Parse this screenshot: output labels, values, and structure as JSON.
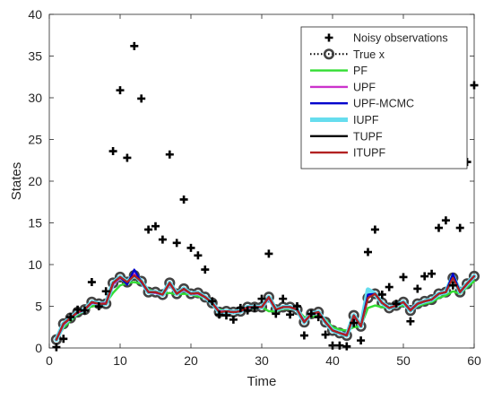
{
  "chart_data": {
    "type": "line",
    "title": "",
    "xlabel": "Time",
    "ylabel": "States",
    "xlim": [
      0,
      60
    ],
    "ylim": [
      0,
      40
    ],
    "xticks": [
      0,
      10,
      20,
      30,
      40,
      50,
      60
    ],
    "yticks": [
      0,
      5,
      10,
      15,
      20,
      25,
      30,
      35,
      40
    ],
    "grid": false,
    "legend_position": "top-right",
    "x": [
      1,
      2,
      3,
      4,
      5,
      6,
      7,
      8,
      9,
      10,
      11,
      12,
      13,
      14,
      15,
      16,
      17,
      18,
      19,
      20,
      21,
      22,
      23,
      24,
      25,
      26,
      27,
      28,
      29,
      30,
      31,
      32,
      33,
      34,
      35,
      36,
      37,
      38,
      39,
      40,
      41,
      42,
      43,
      44,
      45,
      46,
      47,
      48,
      49,
      50,
      51,
      52,
      53,
      54,
      55,
      56,
      57,
      58,
      59,
      60
    ],
    "series": [
      {
        "name": "Noisy observations",
        "style": "markers-plus",
        "color": "#000000",
        "values": [
          0.1,
          1.1,
          3.7,
          4.6,
          4.5,
          7.9,
          5.0,
          6.8,
          23.6,
          30.9,
          22.8,
          36.2,
          29.9,
          14.2,
          14.6,
          13.0,
          23.2,
          12.6,
          17.8,
          12.0,
          11.1,
          9.4,
          5.6,
          4.0,
          3.9,
          3.4,
          4.8,
          4.5,
          4.8,
          5.9,
          11.3,
          4.1,
          5.9,
          4.0,
          5.0,
          1.5,
          4.1,
          3.7,
          1.6,
          0.3,
          0.3,
          0.2,
          3.0,
          0.9,
          11.5,
          14.2,
          6.4,
          7.3,
          5.3,
          8.5,
          3.2,
          7.1,
          8.6,
          8.9,
          14.4,
          15.3,
          7.5,
          14.4,
          22.3,
          31.5
        ]
      },
      {
        "name": "True x",
        "style": "dotted-circles",
        "color": "#000000",
        "values": [
          1.0,
          2.9,
          3.6,
          4.3,
          4.6,
          5.5,
          5.3,
          5.3,
          7.8,
          8.5,
          7.9,
          8.7,
          8.0,
          6.7,
          6.7,
          6.4,
          7.8,
          6.5,
          7.1,
          6.5,
          6.6,
          6.1,
          5.4,
          4.3,
          4.4,
          4.3,
          4.4,
          4.9,
          4.9,
          4.9,
          6.1,
          4.6,
          4.9,
          4.9,
          4.6,
          3.1,
          4.1,
          4.3,
          3.1,
          2.1,
          1.8,
          1.5,
          3.9,
          2.6,
          6.0,
          6.5,
          5.4,
          4.8,
          5.1,
          5.5,
          4.5,
          5.3,
          5.6,
          5.8,
          6.5,
          6.7,
          8.4,
          6.7,
          7.7,
          8.6
        ]
      },
      {
        "name": "PF",
        "style": "line",
        "color": "#33dd33",
        "values": [
          1.1,
          2.4,
          3.3,
          4.0,
          4.5,
          5.0,
          5.1,
          5.4,
          6.6,
          7.5,
          7.8,
          7.9,
          7.7,
          7.0,
          6.7,
          6.5,
          6.6,
          6.4,
          6.5,
          6.4,
          6.2,
          6.0,
          5.3,
          4.6,
          4.4,
          4.3,
          4.4,
          4.6,
          4.8,
          4.9,
          4.4,
          4.4,
          4.7,
          4.7,
          4.6,
          3.7,
          3.7,
          4.0,
          3.4,
          2.5,
          2.2,
          2.1,
          2.5,
          2.6,
          4.8,
          5.1,
          4.9,
          4.8,
          5.0,
          5.1,
          4.8,
          5.0,
          5.3,
          5.5,
          6.0,
          6.3,
          6.8,
          6.5,
          7.3,
          8.0
        ]
      },
      {
        "name": "UPF",
        "style": "line",
        "color": "#cc33cc",
        "values": [
          1.0,
          2.8,
          3.6,
          4.2,
          4.6,
          5.4,
          5.3,
          5.4,
          7.6,
          8.4,
          7.8,
          8.9,
          7.9,
          6.7,
          6.6,
          6.4,
          7.7,
          6.5,
          7.0,
          6.5,
          6.5,
          6.1,
          5.4,
          4.4,
          4.4,
          4.3,
          4.4,
          4.8,
          4.9,
          4.9,
          6.0,
          4.6,
          4.9,
          4.9,
          4.6,
          3.2,
          4.0,
          4.2,
          3.1,
          2.1,
          1.8,
          1.6,
          3.8,
          2.6,
          6.2,
          6.5,
          5.4,
          4.8,
          5.1,
          5.5,
          4.6,
          5.3,
          5.6,
          5.8,
          6.5,
          6.7,
          8.6,
          6.7,
          7.7,
          8.6
        ]
      },
      {
        "name": "UPF-MCMC",
        "style": "line",
        "color": "#0000cc",
        "values": [
          1.0,
          2.9,
          3.6,
          4.3,
          4.6,
          5.5,
          5.3,
          5.3,
          7.8,
          8.5,
          7.6,
          9.4,
          7.9,
          6.7,
          6.7,
          6.4,
          7.8,
          6.5,
          7.1,
          6.5,
          6.6,
          6.1,
          5.4,
          4.3,
          4.4,
          4.3,
          4.4,
          4.9,
          4.9,
          4.9,
          6.1,
          4.6,
          4.9,
          4.9,
          4.6,
          3.1,
          4.1,
          4.3,
          3.1,
          2.1,
          1.8,
          1.5,
          3.9,
          2.6,
          6.4,
          6.5,
          5.4,
          4.8,
          5.1,
          5.5,
          4.5,
          5.3,
          5.6,
          5.8,
          6.5,
          6.7,
          8.9,
          6.7,
          7.7,
          8.6
        ]
      },
      {
        "name": "IUPF",
        "style": "line-thick",
        "color": "#66ddee",
        "values": [
          1.0,
          2.9,
          3.6,
          4.3,
          4.6,
          5.5,
          5.3,
          5.3,
          7.8,
          8.5,
          7.9,
          8.8,
          8.0,
          6.7,
          6.7,
          6.4,
          7.8,
          6.5,
          7.1,
          6.5,
          6.6,
          6.1,
          5.4,
          4.3,
          4.4,
          4.3,
          4.4,
          4.9,
          4.9,
          4.9,
          6.1,
          4.6,
          4.9,
          4.9,
          4.6,
          3.1,
          4.1,
          4.3,
          3.1,
          2.1,
          1.8,
          1.5,
          3.9,
          2.6,
          7.0,
          6.5,
          5.4,
          4.8,
          5.1,
          5.5,
          4.5,
          5.3,
          5.6,
          5.8,
          6.5,
          6.7,
          8.6,
          6.7,
          7.7,
          8.6
        ]
      },
      {
        "name": "TUPF",
        "style": "line",
        "color": "#000000",
        "values": [
          1.0,
          2.9,
          3.6,
          4.3,
          4.6,
          5.5,
          5.3,
          5.3,
          7.8,
          8.5,
          7.9,
          8.7,
          8.0,
          6.7,
          6.7,
          6.4,
          7.8,
          6.5,
          7.1,
          6.5,
          6.6,
          6.1,
          5.4,
          4.3,
          4.4,
          4.3,
          4.4,
          4.9,
          4.9,
          4.9,
          6.1,
          4.6,
          4.9,
          4.9,
          4.6,
          3.1,
          4.1,
          4.3,
          3.1,
          2.1,
          1.8,
          1.5,
          3.9,
          2.6,
          6.0,
          6.5,
          5.4,
          4.8,
          5.1,
          5.5,
          4.5,
          5.3,
          5.6,
          5.8,
          6.5,
          6.7,
          8.4,
          6.7,
          7.7,
          8.6
        ]
      },
      {
        "name": "ITUPF",
        "style": "line",
        "color": "#b22222",
        "values": [
          1.0,
          2.9,
          3.6,
          4.3,
          4.6,
          5.5,
          5.3,
          5.3,
          7.8,
          8.5,
          7.9,
          8.7,
          8.0,
          6.7,
          6.7,
          6.4,
          7.8,
          6.5,
          7.1,
          6.5,
          6.6,
          6.1,
          5.4,
          4.3,
          4.4,
          4.3,
          4.4,
          4.9,
          4.9,
          4.9,
          6.1,
          4.6,
          4.9,
          4.9,
          4.6,
          3.1,
          4.1,
          4.3,
          3.1,
          2.1,
          1.8,
          1.5,
          3.9,
          2.6,
          6.0,
          6.5,
          5.4,
          4.8,
          5.1,
          5.5,
          4.5,
          5.3,
          5.6,
          5.8,
          6.5,
          6.7,
          8.4,
          6.7,
          7.7,
          8.6
        ]
      }
    ]
  }
}
